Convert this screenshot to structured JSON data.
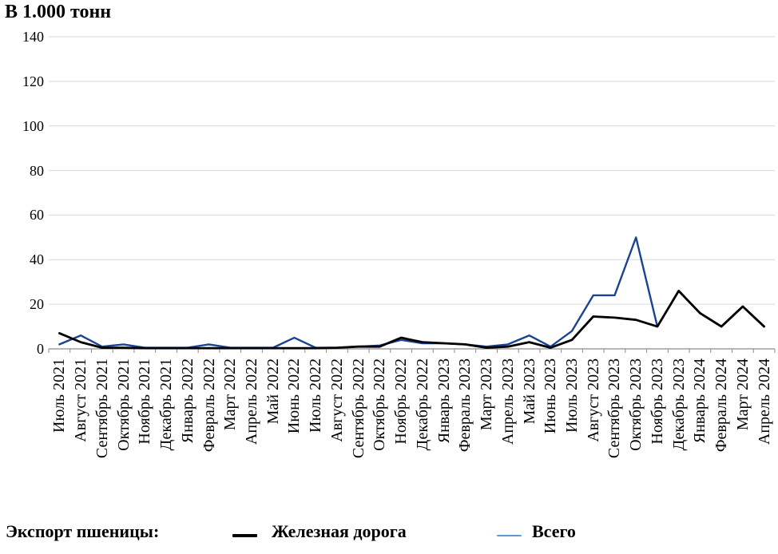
{
  "title": "В 1.000 тонн",
  "chart_data": {
    "type": "line",
    "title": "В 1.000 тонн",
    "xlabel": "",
    "ylabel": "В 1.000 тонн",
    "ylim": [
      0,
      140
    ],
    "y_ticks": [
      0,
      20,
      40,
      60,
      80,
      100,
      120,
      140
    ],
    "grid": "horizontal",
    "legend_position": "bottom",
    "categories": [
      "Июль 2021",
      "Август 2021",
      "Сентябрь 2021",
      "Октябрь 2021",
      "Ноябрь 2021",
      "Декабрь 2021",
      "Январь 2022",
      "Февраль 2022",
      "Март 2022",
      "Апрель 2022",
      "Май 2022",
      "Июнь 2022",
      "Июль 2022",
      "Август 2022",
      "Сентябрь 2022",
      "Октябрь 2022",
      "Ноябрь 2022",
      "Декабрь 2022",
      "Январь 2023",
      "Февраль 2023",
      "Март 2023",
      "Апрель 2023",
      "Май 2023",
      "Июнь 2023",
      "Июль 2023",
      "Август 2023",
      "Сентябрь 2023",
      "Октябрь 2023",
      "Ноябрь 2023",
      "Декабрь 2023",
      "Январь 2024",
      "Февраль 2024",
      "Март 2024",
      "Апрель 2024"
    ],
    "series": [
      {
        "key": "rail",
        "name": "Железная дорога",
        "color": "#000000",
        "line_width": 2.8,
        "values": [
          7,
          3,
          0.5,
          0.5,
          0.3,
          0.3,
          0.3,
          0.3,
          0.3,
          0.3,
          0.3,
          0.3,
          0.3,
          0.5,
          1,
          1,
          5,
          3,
          2.5,
          2,
          0.5,
          1,
          3,
          0.5,
          4,
          14.5,
          14,
          13,
          10,
          26,
          16,
          10,
          19,
          10
        ]
      },
      {
        "key": "total",
        "name": "Всего",
        "color": "#1b4394",
        "line_width": 2.4,
        "values": [
          2,
          6,
          1,
          2,
          0.5,
          0.5,
          0.5,
          2,
          0.5,
          0.5,
          0.5,
          5,
          0.5,
          0.5,
          1,
          1.5,
          4,
          2.5,
          2.5,
          2,
          1,
          2,
          6,
          1,
          8,
          24,
          24,
          50,
          10,
          26,
          16,
          10,
          19,
          10
        ]
      }
    ]
  },
  "legend": {
    "label": "Экспорт пшеницы:",
    "items": [
      {
        "key": "rail",
        "name": "Железная дорога",
        "marker_color": "#000000",
        "marker_thickness": 3.5
      },
      {
        "key": "total",
        "name": "Всего",
        "marker_color": "#5b9bd5",
        "marker_thickness": 2
      }
    ]
  },
  "colors": {
    "background": "#ffffff",
    "gridline": "#d9d9d9",
    "axis": "#8c8c8c",
    "text": "#000000"
  }
}
